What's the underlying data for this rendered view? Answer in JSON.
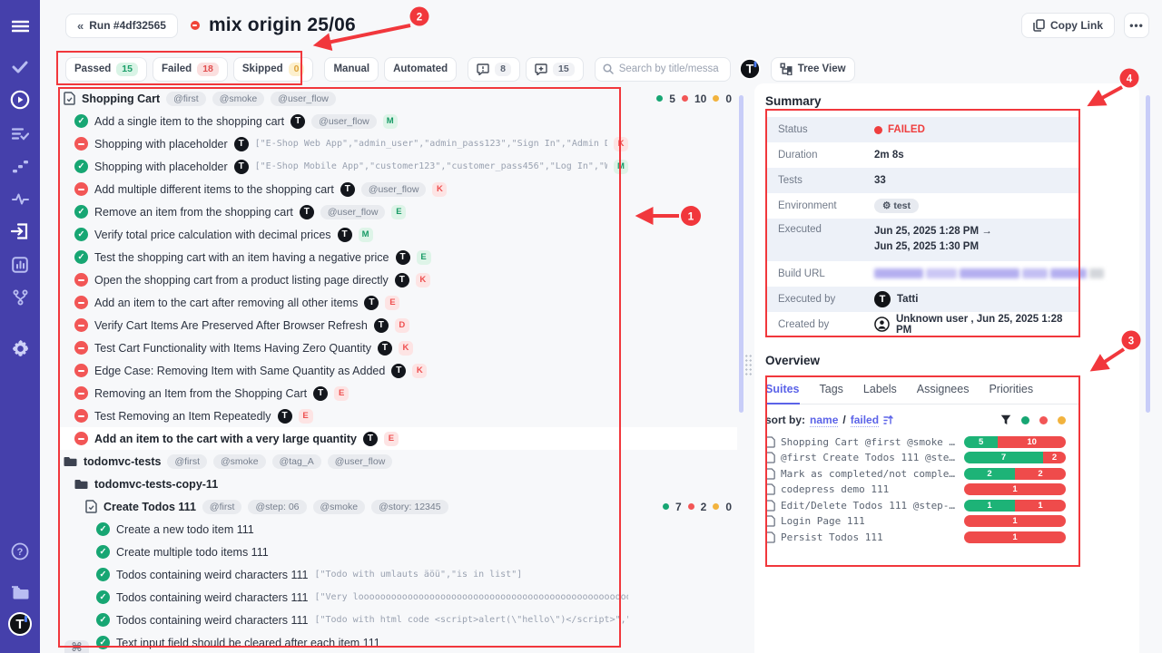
{
  "colors": {
    "green": "#17a673",
    "red": "#f25656",
    "yellow": "#f2b33e",
    "annotation_red": "#f1373c",
    "accent_purple": "#5b63e8",
    "sidebar": "#4540ab"
  },
  "sidebar": {
    "icons": [
      "menu-icon",
      "check-icon",
      "play-circle-icon",
      "list-check-icon",
      "steps-icon",
      "pulse-icon",
      "import-icon",
      "analytics-icon",
      "branch-icon",
      "gear-icon",
      "help-icon",
      "projects-folder-icon",
      "user-logo-avatar"
    ]
  },
  "header": {
    "back_chevrons": "«",
    "run_button": "Run #4df32565",
    "title": "mix origin 25/06",
    "copy_link": "Copy Link",
    "more": "•••"
  },
  "filters": {
    "passed_label": "Passed",
    "passed_count": "15",
    "failed_label": "Failed",
    "failed_count": "18",
    "skipped_label": "Skipped",
    "skipped_count": "0",
    "manual": "Manual",
    "automated": "Automated",
    "comments_count": "8",
    "notes_count": "15",
    "search_placeholder": "Search by title/message",
    "tree_view": "Tree View"
  },
  "test_list": {
    "rows": [
      {
        "kind": "suite",
        "depth": 0,
        "title": "Shopping Cart",
        "tags": [
          "@first",
          "@smoke",
          "@user_flow"
        ],
        "counts": {
          "passed": "5",
          "failed": "10",
          "skipped": "0"
        }
      },
      {
        "kind": "test",
        "depth": 1,
        "status": "passed",
        "title": "Add a single item to the shopping cart",
        "t": true,
        "tags": [
          "@user_flow"
        ],
        "badge": "M",
        "badge_color": "green"
      },
      {
        "kind": "test",
        "depth": 1,
        "status": "failed",
        "title": "Shopping with placeholder",
        "t": true,
        "meta": "[\"E-Shop Web App\",\"admin_user\",\"admin_pass123\",\"Sign In\",\"Admin Dash…",
        "badge": "K",
        "badge_color": "red"
      },
      {
        "kind": "test",
        "depth": 1,
        "status": "passed",
        "title": "Shopping with placeholder",
        "t": true,
        "meta": "[\"E-Shop Mobile App\",\"customer123\",\"customer_pass456\",\"Log In\",\"Welc…",
        "badge": "M",
        "badge_color": "green"
      },
      {
        "kind": "test",
        "depth": 1,
        "status": "failed",
        "title": "Add multiple different items to the shopping cart",
        "t": true,
        "tags": [
          "@user_flow"
        ],
        "badge": "K",
        "badge_color": "red"
      },
      {
        "kind": "test",
        "depth": 1,
        "status": "passed",
        "title": "Remove an item from the shopping cart",
        "t": true,
        "tags": [
          "@user_flow"
        ],
        "badge": "E",
        "badge_color": "green"
      },
      {
        "kind": "test",
        "depth": 1,
        "status": "passed",
        "title": "Verify total price calculation with decimal prices",
        "t": true,
        "badge": "M",
        "badge_color": "green"
      },
      {
        "kind": "test",
        "depth": 1,
        "status": "passed",
        "title": "Test the shopping cart with an item having a negative price",
        "t": true,
        "badge": "E",
        "badge_color": "green"
      },
      {
        "kind": "test",
        "depth": 1,
        "status": "failed",
        "title": "Open the shopping cart from a product listing page directly",
        "t": true,
        "badge": "K",
        "badge_color": "red"
      },
      {
        "kind": "test",
        "depth": 1,
        "status": "failed",
        "title": "Add an item to the cart after removing all other items",
        "t": true,
        "badge": "E",
        "badge_color": "red"
      },
      {
        "kind": "test",
        "depth": 1,
        "status": "failed",
        "title": "Verify Cart Items Are Preserved After Browser Refresh",
        "t": true,
        "badge": "D",
        "badge_color": "red"
      },
      {
        "kind": "test",
        "depth": 1,
        "status": "failed",
        "title": "Test Cart Functionality with Items Having Zero Quantity",
        "t": true,
        "badge": "K",
        "badge_color": "red"
      },
      {
        "kind": "test",
        "depth": 1,
        "status": "failed",
        "title": "Edge Case: Removing Item with Same Quantity as Added",
        "t": true,
        "badge": "K",
        "badge_color": "red"
      },
      {
        "kind": "test",
        "depth": 1,
        "status": "failed",
        "title": "Removing an Item from the Shopping Cart",
        "t": true,
        "badge": "E",
        "badge_color": "red"
      },
      {
        "kind": "test",
        "depth": 1,
        "status": "failed",
        "title": "Test Removing an Item Repeatedly",
        "t": true,
        "badge": "E",
        "badge_color": "red"
      },
      {
        "kind": "test",
        "depth": 1,
        "status": "failed",
        "title": "Add an item to the cart with a very large quantity",
        "t": true,
        "badge": "E",
        "badge_color": "red",
        "selected": true,
        "bold": true
      },
      {
        "kind": "folder",
        "depth": 0,
        "title": "todomvc-tests",
        "tags": [
          "@first",
          "@smoke",
          "@tag_A",
          "@user_flow"
        ]
      },
      {
        "kind": "folder",
        "depth": 1,
        "title": "todomvc-tests-copy-11"
      },
      {
        "kind": "suite",
        "depth": 2,
        "title": "Create Todos 111",
        "tags": [
          "@first",
          "@step: 06",
          "@smoke",
          "@story: 12345"
        ],
        "counts": {
          "passed": "7",
          "failed": "2",
          "skipped": "0"
        }
      },
      {
        "kind": "test",
        "depth": 3,
        "status": "passed",
        "title": "Create a new todo item 111"
      },
      {
        "kind": "test",
        "depth": 3,
        "status": "passed",
        "title": "Create multiple todo items 111"
      },
      {
        "kind": "test",
        "depth": 3,
        "status": "passed",
        "title": "Todos containing weird characters 111",
        "meta": "[\"Todo with umlauts äöü\",\"is in list\"]"
      },
      {
        "kind": "test",
        "depth": 3,
        "status": "passed",
        "title": "Todos containing weird characters 111",
        "meta": "[\"Very looooooooooooooooooooooooooooooooooooooooooooooooooooooooooooooooooo…"
      },
      {
        "kind": "test",
        "depth": 3,
        "status": "passed",
        "title": "Todos containing weird characters 111",
        "meta": "[\"Todo with html code <script>alert(\\\"hello\\\")</script>\",\"is in list…"
      },
      {
        "kind": "test",
        "depth": 3,
        "status": "passed",
        "title": "Text input field should be cleared after each item 111"
      }
    ],
    "shortcut_hint": "⌘"
  },
  "summary": {
    "title": "Summary",
    "rows": [
      {
        "label": "Status",
        "type": "status",
        "value": "FAILED"
      },
      {
        "label": "Duration",
        "type": "text",
        "value": "2m 8s"
      },
      {
        "label": "Tests",
        "type": "text",
        "value": "33"
      },
      {
        "label": "Environment",
        "type": "env",
        "value": "test"
      },
      {
        "label": "Executed",
        "type": "two_lines",
        "value": "Jun 25, 2025 1:28 PM →",
        "value2": "Jun 25, 2025 1:30 PM"
      },
      {
        "label": "Build URL",
        "type": "redacted",
        "value": ""
      },
      {
        "label": "Executed by",
        "type": "avatar",
        "value": "Tatti"
      },
      {
        "label": "Created by",
        "type": "user",
        "value": "Unknown user , Jun 25, 2025 1:28 PM"
      }
    ]
  },
  "overview": {
    "title": "Overview",
    "tabs": [
      "Suites",
      "Tags",
      "Labels",
      "Assignees",
      "Priorities"
    ],
    "active_tab": "Suites",
    "sort_label": "sort by:",
    "sort_name": "name",
    "sort_sep": "/",
    "sort_failed": "failed",
    "suites": [
      {
        "name": "Shopping Cart @first @smoke …",
        "passed": 5,
        "failed": 10
      },
      {
        "name": "@first Create Todos 111 @ste…",
        "passed": 7,
        "failed": 2
      },
      {
        "name": "Mark as completed/not comple…",
        "passed": 2,
        "failed": 2
      },
      {
        "name": "codepress demo 111",
        "passed": 0,
        "failed": 1
      },
      {
        "name": "Edit/Delete Todos 111 @step-…",
        "passed": 1,
        "failed": 1
      },
      {
        "name": "Login Page 111",
        "passed": 0,
        "failed": 1
      },
      {
        "name": "Persist Todos 111",
        "passed": 0,
        "failed": 1
      }
    ]
  },
  "annotations": {
    "n1": "1",
    "n2": "2",
    "n3": "3",
    "n4": "4"
  }
}
